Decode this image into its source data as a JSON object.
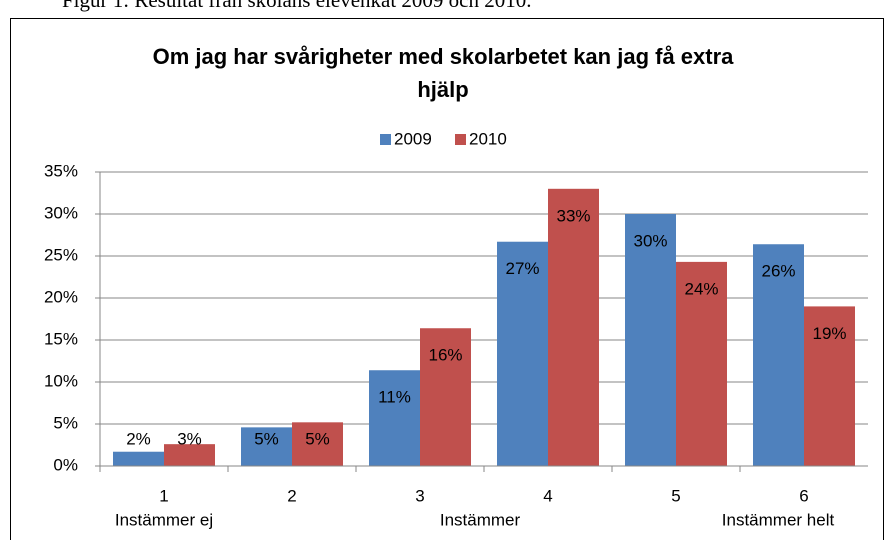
{
  "caption": "Figur 1: Resultat från skolans elevenkät 2009 och 2010.",
  "chart_data": {
    "type": "bar",
    "title": "Om jag har svårigheter med skolarbetet kan jag få extra\nhjälp",
    "categories": [
      "1",
      "2",
      "3",
      "4",
      "5",
      "6"
    ],
    "scale_labels": [
      "Instämmer ej",
      "Instämmer",
      "Instämmer helt"
    ],
    "series": [
      {
        "name": "2009",
        "color": "#4f81bd",
        "values": [
          1.7,
          4.6,
          11.4,
          26.7,
          30.0,
          26.4
        ],
        "value_labels": [
          "2%",
          "5%",
          "11%",
          "27%",
          "30%",
          "26%"
        ]
      },
      {
        "name": "2010",
        "color": "#c0504d",
        "values": [
          2.6,
          5.2,
          16.4,
          33.0,
          24.3,
          19.0
        ],
        "value_labels": [
          "3%",
          "5%",
          "16%",
          "33%",
          "24%",
          "19%"
        ]
      }
    ],
    "ylim": [
      0,
      35
    ],
    "yticks": [
      {
        "value": 0,
        "label": "0%"
      },
      {
        "value": 5,
        "label": "5%"
      },
      {
        "value": 10,
        "label": "10%"
      },
      {
        "value": 15,
        "label": "15%"
      },
      {
        "value": 20,
        "label": "20%"
      },
      {
        "value": 25,
        "label": "25%"
      },
      {
        "value": 30,
        "label": "30%"
      },
      {
        "value": 35,
        "label": "35%"
      }
    ],
    "grid": true,
    "legend": "top"
  }
}
